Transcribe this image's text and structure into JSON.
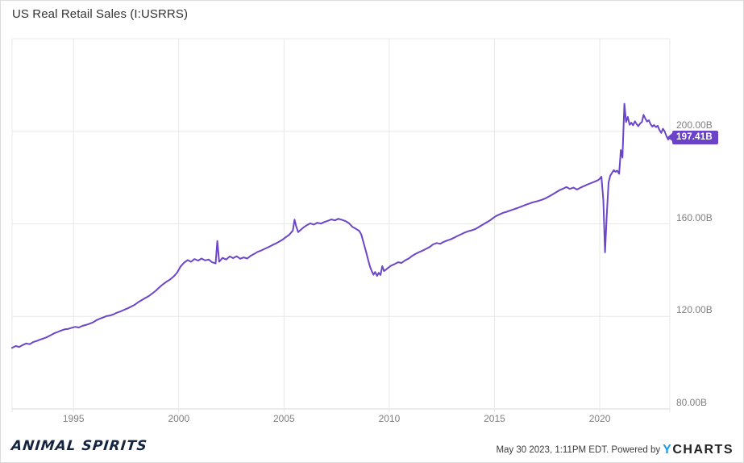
{
  "header": {
    "title": "US Real Retail Sales (I:USRRS)"
  },
  "footer": {
    "brand": "ANIMAL SPIRITS",
    "timestamp_text": "May 30 2023, 1:11PM EDT. Powered by",
    "ycharts_y": "Y",
    "ycharts_rest": "CHARTS"
  },
  "colors": {
    "line": "#6b46c8",
    "badge": "#6a43c9",
    "grid": "#e8e8e8",
    "axis_line": "#d8d8d8",
    "axis_text": "#808080",
    "title_text": "#333333",
    "ycharts_blue": "#1e9be9",
    "brand_ink": "#16253f"
  },
  "chart_data": {
    "type": "line",
    "title": "US Real Retail Sales (I:USRRS)",
    "unit": "billions USD",
    "legend": "none",
    "grid": "on",
    "x_range": [
      1992.08,
      2023.33
    ],
    "y_range": [
      80,
      240
    ],
    "x_ticks": [
      1995,
      2000,
      2005,
      2010,
      2015,
      2020
    ],
    "y_ticks": [
      {
        "value": 80,
        "label": "80.00B"
      },
      {
        "value": 120,
        "label": "120.00B"
      },
      {
        "value": 160,
        "label": "160.00B"
      },
      {
        "value": 200,
        "label": "200.00B"
      }
    ],
    "last_value": 197.41,
    "last_value_label": "197.41B",
    "series": [
      {
        "name": "US Real Retail Sales",
        "points": [
          [
            1992.08,
            106.4
          ],
          [
            1992.25,
            107.2
          ],
          [
            1992.42,
            106.8
          ],
          [
            1992.58,
            107.6
          ],
          [
            1992.75,
            108.3
          ],
          [
            1992.92,
            108.0
          ],
          [
            1993.08,
            108.9
          ],
          [
            1993.25,
            109.4
          ],
          [
            1993.42,
            110.0
          ],
          [
            1993.58,
            110.5
          ],
          [
            1993.75,
            111.1
          ],
          [
            1993.92,
            111.9
          ],
          [
            1994.08,
            112.7
          ],
          [
            1994.25,
            113.3
          ],
          [
            1994.42,
            113.9
          ],
          [
            1994.58,
            114.4
          ],
          [
            1994.75,
            114.6
          ],
          [
            1994.92,
            115.1
          ],
          [
            1995.08,
            115.5
          ],
          [
            1995.25,
            115.2
          ],
          [
            1995.42,
            115.9
          ],
          [
            1995.58,
            116.3
          ],
          [
            1995.75,
            116.8
          ],
          [
            1995.92,
            117.4
          ],
          [
            1996.08,
            118.3
          ],
          [
            1996.25,
            119.0
          ],
          [
            1996.42,
            119.6
          ],
          [
            1996.58,
            120.2
          ],
          [
            1996.75,
            120.4
          ],
          [
            1996.92,
            121.0
          ],
          [
            1997.08,
            121.7
          ],
          [
            1997.25,
            122.2
          ],
          [
            1997.42,
            122.9
          ],
          [
            1997.58,
            123.5
          ],
          [
            1997.75,
            124.3
          ],
          [
            1997.92,
            125.1
          ],
          [
            1998.08,
            126.2
          ],
          [
            1998.25,
            127.1
          ],
          [
            1998.42,
            128.0
          ],
          [
            1998.58,
            128.8
          ],
          [
            1998.75,
            130.0
          ],
          [
            1998.92,
            131.2
          ],
          [
            1999.08,
            132.6
          ],
          [
            1999.25,
            133.9
          ],
          [
            1999.42,
            135.0
          ],
          [
            1999.58,
            135.9
          ],
          [
            1999.75,
            137.2
          ],
          [
            1999.92,
            138.9
          ],
          [
            2000.08,
            141.5
          ],
          [
            2000.25,
            143.2
          ],
          [
            2000.42,
            144.3
          ],
          [
            2000.58,
            143.6
          ],
          [
            2000.75,
            144.8
          ],
          [
            2000.92,
            144.1
          ],
          [
            2001.08,
            145.0
          ],
          [
            2001.25,
            144.2
          ],
          [
            2001.42,
            144.6
          ],
          [
            2001.58,
            143.4
          ],
          [
            2001.75,
            142.9
          ],
          [
            2001.83,
            152.6
          ],
          [
            2001.92,
            143.6
          ],
          [
            2002.08,
            145.3
          ],
          [
            2002.25,
            144.6
          ],
          [
            2002.42,
            145.9
          ],
          [
            2002.58,
            145.2
          ],
          [
            2002.75,
            146.0
          ],
          [
            2002.92,
            144.9
          ],
          [
            2003.08,
            145.5
          ],
          [
            2003.25,
            145.0
          ],
          [
            2003.42,
            146.2
          ],
          [
            2003.58,
            147.0
          ],
          [
            2003.75,
            147.9
          ],
          [
            2003.92,
            148.5
          ],
          [
            2004.08,
            149.2
          ],
          [
            2004.25,
            149.9
          ],
          [
            2004.42,
            150.7
          ],
          [
            2004.58,
            151.4
          ],
          [
            2004.75,
            152.2
          ],
          [
            2004.92,
            153.1
          ],
          [
            2005.08,
            154.2
          ],
          [
            2005.25,
            155.3
          ],
          [
            2005.42,
            157.1
          ],
          [
            2005.5,
            161.8
          ],
          [
            2005.58,
            158.9
          ],
          [
            2005.67,
            156.4
          ],
          [
            2005.83,
            157.7
          ],
          [
            2005.92,
            158.4
          ],
          [
            2006.08,
            159.4
          ],
          [
            2006.25,
            160.2
          ],
          [
            2006.42,
            159.7
          ],
          [
            2006.58,
            160.5
          ],
          [
            2006.75,
            160.1
          ],
          [
            2006.92,
            160.8
          ],
          [
            2007.08,
            161.3
          ],
          [
            2007.25,
            161.9
          ],
          [
            2007.42,
            161.5
          ],
          [
            2007.58,
            162.2
          ],
          [
            2007.75,
            161.7
          ],
          [
            2007.92,
            161.2
          ],
          [
            2008.08,
            160.3
          ],
          [
            2008.25,
            158.7
          ],
          [
            2008.42,
            157.8
          ],
          [
            2008.58,
            156.9
          ],
          [
            2008.67,
            155.4
          ],
          [
            2008.75,
            152.8
          ],
          [
            2008.83,
            150.1
          ],
          [
            2008.92,
            147.2
          ],
          [
            2009.0,
            144.3
          ],
          [
            2009.08,
            141.6
          ],
          [
            2009.17,
            139.5
          ],
          [
            2009.25,
            138.0
          ],
          [
            2009.33,
            139.2
          ],
          [
            2009.42,
            137.5
          ],
          [
            2009.5,
            138.8
          ],
          [
            2009.58,
            137.9
          ],
          [
            2009.67,
            141.7
          ],
          [
            2009.75,
            139.6
          ],
          [
            2009.83,
            140.1
          ],
          [
            2009.92,
            140.8
          ],
          [
            2010.08,
            141.9
          ],
          [
            2010.25,
            142.6
          ],
          [
            2010.42,
            143.4
          ],
          [
            2010.58,
            143.1
          ],
          [
            2010.75,
            144.2
          ],
          [
            2010.92,
            145.0
          ],
          [
            2011.08,
            146.1
          ],
          [
            2011.25,
            147.0
          ],
          [
            2011.42,
            147.8
          ],
          [
            2011.58,
            148.4
          ],
          [
            2011.75,
            149.2
          ],
          [
            2011.92,
            150.0
          ],
          [
            2012.08,
            151.1
          ],
          [
            2012.25,
            151.7
          ],
          [
            2012.42,
            151.4
          ],
          [
            2012.58,
            152.2
          ],
          [
            2012.75,
            152.8
          ],
          [
            2012.92,
            153.3
          ],
          [
            2013.08,
            154.0
          ],
          [
            2013.25,
            154.8
          ],
          [
            2013.42,
            155.5
          ],
          [
            2013.58,
            156.2
          ],
          [
            2013.75,
            156.8
          ],
          [
            2013.92,
            157.2
          ],
          [
            2014.08,
            157.7
          ],
          [
            2014.25,
            158.6
          ],
          [
            2014.42,
            159.5
          ],
          [
            2014.58,
            160.4
          ],
          [
            2014.75,
            161.3
          ],
          [
            2014.92,
            162.4
          ],
          [
            2015.08,
            163.4
          ],
          [
            2015.25,
            164.1
          ],
          [
            2015.42,
            164.8
          ],
          [
            2015.58,
            165.2
          ],
          [
            2015.75,
            165.8
          ],
          [
            2015.92,
            166.3
          ],
          [
            2016.08,
            166.8
          ],
          [
            2016.25,
            167.4
          ],
          [
            2016.42,
            168.0
          ],
          [
            2016.58,
            168.5
          ],
          [
            2016.75,
            169.1
          ],
          [
            2016.92,
            169.5
          ],
          [
            2017.08,
            169.9
          ],
          [
            2017.25,
            170.4
          ],
          [
            2017.42,
            171.0
          ],
          [
            2017.58,
            171.8
          ],
          [
            2017.75,
            172.7
          ],
          [
            2017.92,
            173.6
          ],
          [
            2018.08,
            174.5
          ],
          [
            2018.25,
            175.2
          ],
          [
            2018.42,
            175.9
          ],
          [
            2018.58,
            175.1
          ],
          [
            2018.75,
            175.7
          ],
          [
            2018.92,
            174.8
          ],
          [
            2019.08,
            175.6
          ],
          [
            2019.25,
            176.3
          ],
          [
            2019.42,
            177.0
          ],
          [
            2019.58,
            177.6
          ],
          [
            2019.75,
            178.2
          ],
          [
            2019.92,
            178.9
          ],
          [
            2020.0,
            179.5
          ],
          [
            2020.08,
            180.4
          ],
          [
            2020.17,
            170.2
          ],
          [
            2020.25,
            147.7
          ],
          [
            2020.33,
            163.5
          ],
          [
            2020.42,
            177.9
          ],
          [
            2020.5,
            180.8
          ],
          [
            2020.58,
            182.0
          ],
          [
            2020.67,
            183.2
          ],
          [
            2020.75,
            182.5
          ],
          [
            2020.83,
            183.0
          ],
          [
            2020.92,
            181.6
          ],
          [
            2021.0,
            191.9
          ],
          [
            2021.08,
            188.6
          ],
          [
            2021.17,
            211.9
          ],
          [
            2021.25,
            204.0
          ],
          [
            2021.33,
            206.2
          ],
          [
            2021.42,
            202.8
          ],
          [
            2021.5,
            203.7
          ],
          [
            2021.58,
            202.6
          ],
          [
            2021.67,
            204.3
          ],
          [
            2021.75,
            203.2
          ],
          [
            2021.83,
            202.2
          ],
          [
            2021.92,
            203.4
          ],
          [
            2022.0,
            204.0
          ],
          [
            2022.08,
            207.1
          ],
          [
            2022.17,
            205.4
          ],
          [
            2022.25,
            204.2
          ],
          [
            2022.33,
            204.8
          ],
          [
            2022.42,
            203.0
          ],
          [
            2022.5,
            202.0
          ],
          [
            2022.58,
            202.7
          ],
          [
            2022.67,
            201.8
          ],
          [
            2022.75,
            202.4
          ],
          [
            2022.83,
            200.7
          ],
          [
            2022.92,
            199.3
          ],
          [
            2023.0,
            201.1
          ],
          [
            2023.08,
            200.0
          ],
          [
            2023.17,
            197.9
          ],
          [
            2023.25,
            196.4
          ],
          [
            2023.33,
            197.41
          ]
        ]
      }
    ]
  }
}
